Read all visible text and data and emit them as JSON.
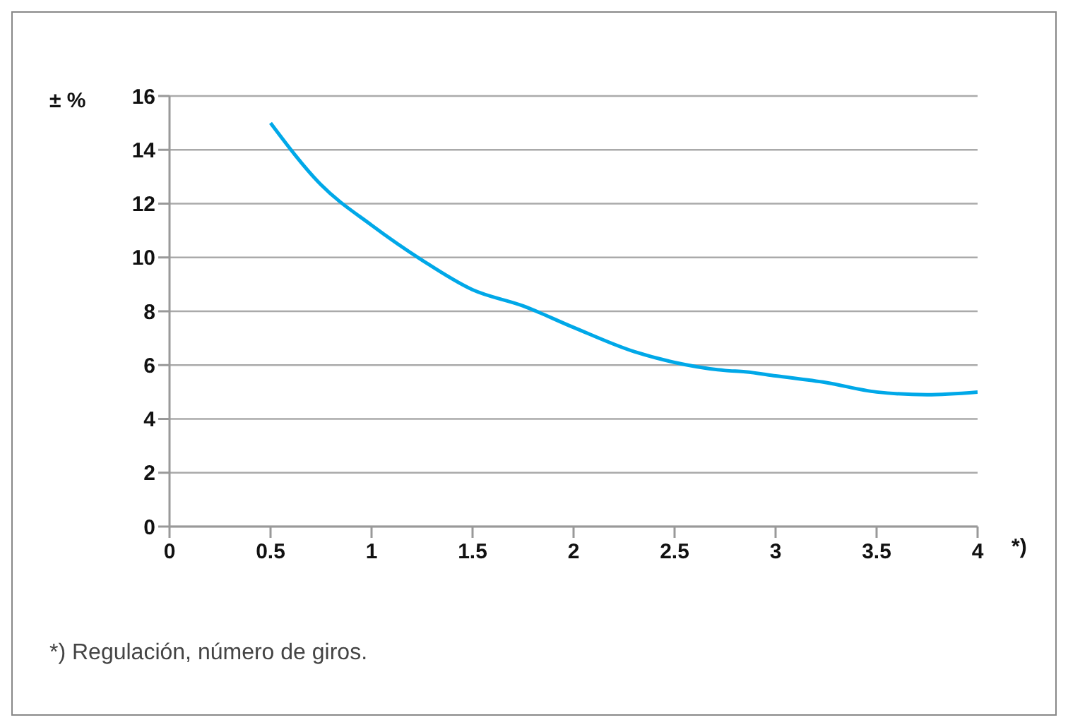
{
  "chart_data": {
    "type": "line",
    "xlabel": "*)",
    "ylabel": "± %",
    "x": [
      0.5,
      0.75,
      1,
      1.25,
      1.5,
      1.75,
      2,
      2.3,
      2.5,
      2.75,
      2.85,
      3,
      3.25,
      3.5,
      3.75,
      4
    ],
    "series": [
      {
        "color": "#00a8e8",
        "values": [
          15,
          12.7,
          11.2,
          9.9,
          8.8,
          8.2,
          7.4,
          6.5,
          6.1,
          5.8,
          5.75,
          5.6,
          5.35,
          5.0,
          4.9,
          5.0
        ]
      }
    ],
    "xlim": [
      0,
      4
    ],
    "xticks": [
      0,
      0.5,
      1,
      1.5,
      2,
      2.5,
      3,
      3.5,
      4
    ],
    "ylim": [
      0,
      16
    ],
    "yticks": [
      0,
      2,
      4,
      6,
      8,
      10,
      12,
      14,
      16
    ],
    "grid": "y",
    "marker": "none",
    "line_style": "solid",
    "annotations": [
      "*) Regulación, número de giros."
    ]
  }
}
